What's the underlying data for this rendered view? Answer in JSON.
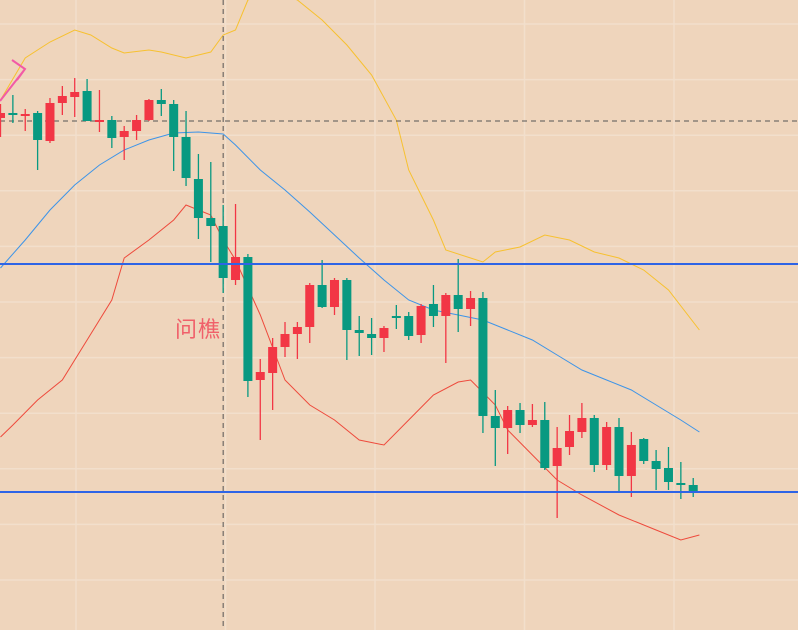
{
  "chart_data": {
    "type": "candlestick",
    "title": "",
    "xlabel": "",
    "ylabel": "",
    "ylim": [
      0,
      63
    ],
    "grid": true,
    "colors": {
      "background": "#efd5bc",
      "grid": "#f2dfcc",
      "up": "#f23645",
      "down": "#089981",
      "upper_band": "#f7c130",
      "middle_band": "#3d94e8",
      "lower_band": "#ee4a3c",
      "horizontal_level": "#2e64e6",
      "crosshair": "#555555",
      "annotation": "#f0606a",
      "arrow": "#f25aa6"
    },
    "candles": [
      [
        51.2,
        52.6,
        49.3,
        51.7
      ],
      [
        51.7,
        53.5,
        50.7,
        51.6
      ],
      [
        51.5,
        52.1,
        49.9,
        51.6
      ],
      [
        51.7,
        51.9,
        46.0,
        49.0
      ],
      [
        48.9,
        53.2,
        48.7,
        52.7
      ],
      [
        52.7,
        54.4,
        51.5,
        53.4
      ],
      [
        53.3,
        55.2,
        51.3,
        53.8
      ],
      [
        53.9,
        55.1,
        50.9,
        50.9
      ],
      [
        50.9,
        54.0,
        49.8,
        51.0
      ],
      [
        51.0,
        51.4,
        48.2,
        49.2
      ],
      [
        49.3,
        50.4,
        47.0,
        49.9
      ],
      [
        49.9,
        51.5,
        49.0,
        51.0
      ],
      [
        51.0,
        53.1,
        50.9,
        53.0
      ],
      [
        53.0,
        54.1,
        51.4,
        52.6
      ],
      [
        52.6,
        53.0,
        45.9,
        49.3
      ],
      [
        49.3,
        51.9,
        44.4,
        45.2
      ],
      [
        45.1,
        47.6,
        39.1,
        41.2
      ],
      [
        41.2,
        46.8,
        36.8,
        40.4
      ],
      [
        40.4,
        42.5,
        33.7,
        35.2
      ],
      [
        35.0,
        42.6,
        34.5,
        37.3
      ],
      [
        37.3,
        37.6,
        23.3,
        24.9
      ],
      [
        25.0,
        27.1,
        19.0,
        25.8
      ],
      [
        25.7,
        29.2,
        22.0,
        28.3
      ],
      [
        28.3,
        30.8,
        27.3,
        29.6
      ],
      [
        29.6,
        30.8,
        27.1,
        30.3
      ],
      [
        30.3,
        34.7,
        28.7,
        34.5
      ],
      [
        34.5,
        37.0,
        32.2,
        32.3
      ],
      [
        32.3,
        35.2,
        31.5,
        35.0
      ],
      [
        35.0,
        35.2,
        27.0,
        30.0
      ],
      [
        30.0,
        31.4,
        27.4,
        29.7
      ],
      [
        29.6,
        31.2,
        27.5,
        29.2
      ],
      [
        29.2,
        30.4,
        27.8,
        30.2
      ],
      [
        31.4,
        32.5,
        30.1,
        31.3
      ],
      [
        31.4,
        31.8,
        29.0,
        29.4
      ],
      [
        29.5,
        32.6,
        28.7,
        32.4
      ],
      [
        32.6,
        34.5,
        30.3,
        31.4
      ],
      [
        31.4,
        33.7,
        26.7,
        33.5
      ],
      [
        33.5,
        37.1,
        29.8,
        32.1
      ],
      [
        32.1,
        33.9,
        30.4,
        33.2
      ],
      [
        33.2,
        33.8,
        19.7,
        21.4
      ],
      [
        21.4,
        24.0,
        16.4,
        20.2
      ],
      [
        20.2,
        22.4,
        17.6,
        22.0
      ],
      [
        22.0,
        22.7,
        19.7,
        20.5
      ],
      [
        20.5,
        22.6,
        20.3,
        21.0
      ],
      [
        21.0,
        22.8,
        16.0,
        16.2
      ],
      [
        16.4,
        20.3,
        11.2,
        18.2
      ],
      [
        18.3,
        21.5,
        17.5,
        19.9
      ],
      [
        19.8,
        22.7,
        19.2,
        21.2
      ],
      [
        21.2,
        21.5,
        15.8,
        16.5
      ],
      [
        16.5,
        20.8,
        16.0,
        20.3
      ],
      [
        20.3,
        21.2,
        13.9,
        15.4
      ],
      [
        15.4,
        19.8,
        13.3,
        18.5
      ],
      [
        19.1,
        19.2,
        16.6,
        16.9
      ],
      [
        16.9,
        18.0,
        14.0,
        16.1
      ],
      [
        16.2,
        18.3,
        14.0,
        14.8
      ],
      [
        14.7,
        16.8,
        13.1,
        14.6
      ],
      [
        14.5,
        15.2,
        13.3,
        13.8
      ]
    ],
    "bands": {
      "upper": [
        [
          0,
          53.0
        ],
        [
          2,
          57.2
        ],
        [
          4,
          58.8
        ],
        [
          6,
          60.0
        ],
        [
          7.3,
          59.5
        ],
        [
          9,
          58.2
        ],
        [
          10,
          57.7
        ],
        [
          12,
          58.0
        ],
        [
          13,
          57.8
        ],
        [
          15,
          57.2
        ],
        [
          17,
          57.8
        ],
        [
          18,
          59.5
        ],
        [
          19,
          60.0
        ],
        [
          20,
          63.0
        ],
        [
          22,
          64.0
        ],
        [
          24,
          63.0
        ],
        [
          26,
          61.0
        ],
        [
          28,
          58.5
        ],
        [
          30,
          55.5
        ],
        [
          32,
          51.0
        ],
        [
          33,
          46.0
        ],
        [
          35,
          41.0
        ],
        [
          36,
          38.0
        ],
        [
          38,
          37.2
        ],
        [
          39,
          36.8
        ],
        [
          40,
          37.8
        ],
        [
          42,
          38.3
        ],
        [
          44,
          39.5
        ],
        [
          46,
          39.0
        ],
        [
          48,
          37.8
        ],
        [
          50,
          37.2
        ],
        [
          52,
          36.0
        ],
        [
          54,
          34.0
        ],
        [
          56.5,
          30.0
        ]
      ],
      "middle": [
        [
          0,
          36.2
        ],
        [
          2,
          39.0
        ],
        [
          4,
          42.0
        ],
        [
          6,
          44.5
        ],
        [
          8,
          46.5
        ],
        [
          10,
          48.0
        ],
        [
          12,
          49.0
        ],
        [
          14,
          49.7
        ],
        [
          16,
          49.8
        ],
        [
          18,
          49.6
        ],
        [
          19,
          48.5
        ],
        [
          21,
          46.0
        ],
        [
          23,
          44.0
        ],
        [
          25,
          41.8
        ],
        [
          27,
          39.5
        ],
        [
          29,
          37.2
        ],
        [
          31,
          35.0
        ],
        [
          33,
          33.0
        ],
        [
          35,
          32.0
        ],
        [
          37,
          31.5
        ],
        [
          39,
          31.0
        ],
        [
          41,
          30.0
        ],
        [
          43,
          29.0
        ],
        [
          45,
          27.5
        ],
        [
          47,
          26.0
        ],
        [
          49,
          25.0
        ],
        [
          51,
          24.0
        ],
        [
          53,
          22.5
        ],
        [
          55,
          21.0
        ],
        [
          56.5,
          19.8
        ]
      ],
      "lower": [
        [
          0,
          19.3
        ],
        [
          1,
          20.5
        ],
        [
          3,
          23.0
        ],
        [
          5,
          25.0
        ],
        [
          7,
          29.0
        ],
        [
          9,
          33.0
        ],
        [
          10,
          37.2
        ],
        [
          12,
          39.0
        ],
        [
          14,
          41.0
        ],
        [
          15,
          42.5
        ],
        [
          16,
          42.0
        ],
        [
          17,
          41.5
        ],
        [
          18,
          39.0
        ],
        [
          19,
          37.0
        ],
        [
          21,
          31.5
        ],
        [
          23,
          25.0
        ],
        [
          25,
          22.5
        ],
        [
          27,
          21.0
        ],
        [
          29,
          19.0
        ],
        [
          31,
          18.5
        ],
        [
          33,
          21.0
        ],
        [
          35,
          23.5
        ],
        [
          37,
          24.8
        ],
        [
          38,
          25.0
        ],
        [
          40,
          22.5
        ],
        [
          41,
          20.0
        ],
        [
          43,
          17.5
        ],
        [
          45,
          15.0
        ],
        [
          47,
          13.5
        ],
        [
          50,
          11.5
        ],
        [
          53,
          10.0
        ],
        [
          55,
          9.0
        ],
        [
          56.5,
          9.5
        ]
      ]
    },
    "horizontal_levels": [
      36.6,
      13.8
    ],
    "crosshair": {
      "index": 18,
      "price": 50.9
    },
    "annotation": {
      "text": "问樵",
      "index": 14.2,
      "price": 30.2
    },
    "arrow_icon": "arrow-right-icon"
  }
}
